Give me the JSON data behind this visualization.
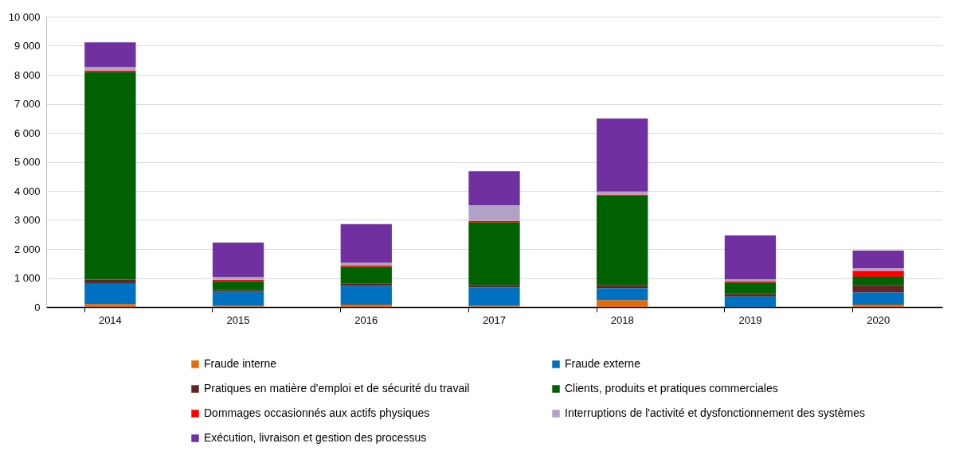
{
  "chart_data": {
    "type": "bar",
    "stacked": true,
    "categories": [
      "2014",
      "2015",
      "2016",
      "2017",
      "2018",
      "2019",
      "2020"
    ],
    "ylim": [
      0,
      10000
    ],
    "yticks": [
      {
        "value": 0,
        "label": "0"
      },
      {
        "value": 1000,
        "label": "1 000"
      },
      {
        "value": 2000,
        "label": "2 000"
      },
      {
        "value": 3000,
        "label": "3 000"
      },
      {
        "value": 4000,
        "label": "4 000"
      },
      {
        "value": 5000,
        "label": "5 000"
      },
      {
        "value": 6000,
        "label": "6 000"
      },
      {
        "value": 7000,
        "label": "7 000"
      },
      {
        "value": 8000,
        "label": "8 000"
      },
      {
        "value": 9000,
        "label": "9 000"
      },
      {
        "value": 10000,
        "label": "10 000"
      }
    ],
    "grid": "y",
    "legend": "bottom",
    "series": [
      {
        "name": "Fraude interne",
        "color": "#e36c09",
        "values": [
          100,
          40,
          80,
          40,
          240,
          null,
          80
        ]
      },
      {
        "name": "Fraude externe",
        "color": "#0070c0",
        "values": [
          720,
          485,
          650,
          640,
          410,
          360,
          430
        ]
      },
      {
        "name": "Pratiques en matière d'emploi et de sécurité du travail",
        "color": "#632523",
        "values": [
          125,
          60,
          85,
          65,
          100,
          95,
          240
        ]
      },
      {
        "name": "Clients, produits et pratiques commerciales",
        "color": "#006100",
        "values": [
          7160,
          300,
          570,
          2180,
          3095,
          385,
          290
        ]
      },
      {
        "name": "Dommages occasionnés aux actifs physiques",
        "color": "#ff0000",
        "values": [
          30,
          50,
          50,
          40,
          20,
          50,
          190
        ]
      },
      {
        "name": "Interruptions de l'activité et dysfonctionnement des systèmes",
        "color": "#b3a2c7",
        "values": [
          130,
          100,
          90,
          540,
          115,
          70,
          110
        ]
      },
      {
        "name": "Exécution, livraison et gestion des processus",
        "color": "#7030a0",
        "values": [
          850,
          1185,
          1330,
          1175,
          2510,
          1505,
          605
        ]
      }
    ]
  }
}
